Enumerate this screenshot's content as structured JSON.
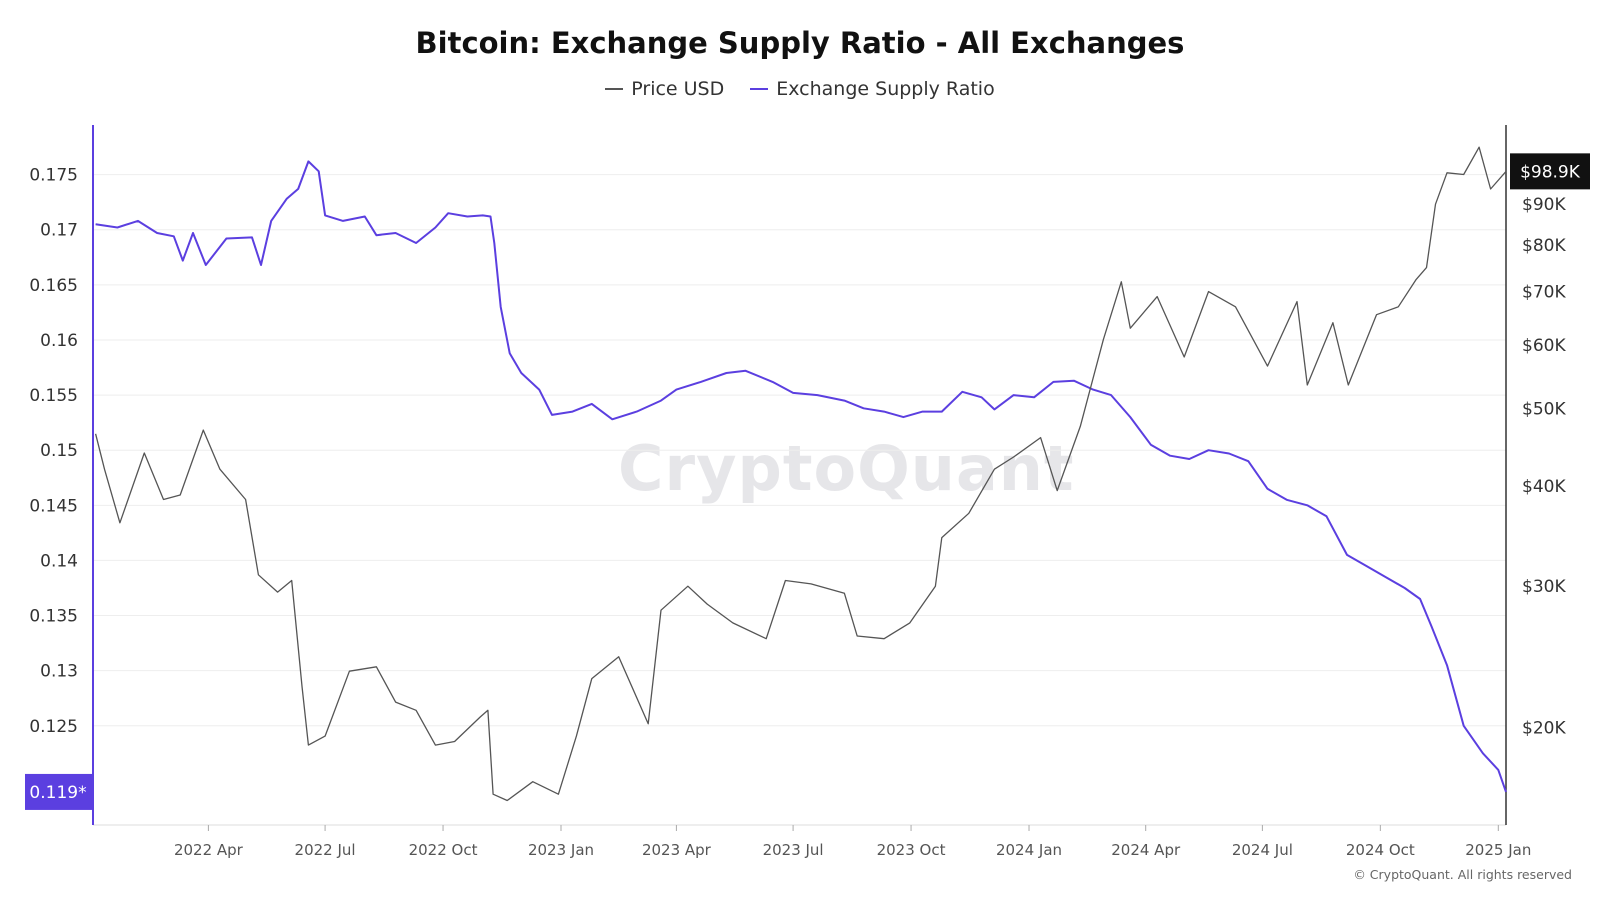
{
  "title": "Bitcoin: Exchange Supply Ratio - All Exchanges",
  "legend": [
    {
      "label": "Price USD",
      "color": "#555555"
    },
    {
      "label": "Exchange Supply Ratio",
      "color": "#5b3fe0"
    }
  ],
  "watermark": "CryptoQuant",
  "credit": "© CryptoQuant. All rights reserved",
  "chart_data": {
    "type": "line",
    "title": "Bitcoin: Exchange Supply Ratio - All Exchanges",
    "x_range": [
      "2022-01-01",
      "2025-01-07"
    ],
    "x_ticks": [
      "2022 Apr",
      "2022 Jul",
      "2022 Oct",
      "2023 Jan",
      "2023 Apr",
      "2023 Jul",
      "2023 Oct",
      "2024 Jan",
      "2024 Apr",
      "2024 Jul",
      "2024 Oct",
      "2025 Jan"
    ],
    "x_tick_dates": [
      "2022-04-01",
      "2022-07-01",
      "2022-10-01",
      "2023-01-01",
      "2023-04-01",
      "2023-07-01",
      "2023-10-01",
      "2024-01-01",
      "2024-04-01",
      "2024-07-01",
      "2024-10-01",
      "2025-01-01"
    ],
    "left_axis": {
      "ticks": [
        "0.125",
        "0.13",
        "0.135",
        "0.14",
        "0.145",
        "0.15",
        "0.155",
        "0.16",
        "0.165",
        "0.17",
        "0.175"
      ],
      "range": [
        0.116,
        0.1795
      ],
      "current_label": "0.119*",
      "current_value": 0.119
    },
    "right_axis": {
      "scale": "log",
      "ticks": [
        "$20K",
        "$30K",
        "$40K",
        "$50K",
        "$60K",
        "$70K",
        "$80K",
        "$90K"
      ],
      "tick_values": [
        20000,
        30000,
        40000,
        50000,
        60000,
        70000,
        80000,
        90000
      ],
      "range": [
        15100,
        113000
      ],
      "current_label": "$98.9K",
      "current_value": 98900
    },
    "series": [
      {
        "name": "Exchange Supply Ratio",
        "axis": "left",
        "color": "#5b3fe0",
        "points": [
          [
            "2022-01-03",
            0.1705
          ],
          [
            "2022-01-20",
            0.1702
          ],
          [
            "2022-02-05",
            0.1708
          ],
          [
            "2022-02-20",
            0.1697
          ],
          [
            "2022-03-05",
            0.1694
          ],
          [
            "2022-03-12",
            0.1672
          ],
          [
            "2022-03-20",
            0.1697
          ],
          [
            "2022-03-30",
            0.1668
          ],
          [
            "2022-04-15",
            0.1692
          ],
          [
            "2022-05-05",
            0.1693
          ],
          [
            "2022-05-12",
            0.1668
          ],
          [
            "2022-05-20",
            0.1708
          ],
          [
            "2022-06-01",
            0.1728
          ],
          [
            "2022-06-10",
            0.1737
          ],
          [
            "2022-06-18",
            0.1762
          ],
          [
            "2022-06-26",
            0.1753
          ],
          [
            "2022-07-01",
            0.1713
          ],
          [
            "2022-07-15",
            0.1708
          ],
          [
            "2022-08-01",
            0.1712
          ],
          [
            "2022-08-10",
            0.1695
          ],
          [
            "2022-08-25",
            0.1697
          ],
          [
            "2022-09-10",
            0.1688
          ],
          [
            "2022-09-25",
            0.1702
          ],
          [
            "2022-10-05",
            0.1715
          ],
          [
            "2022-10-20",
            0.1712
          ],
          [
            "2022-11-01",
            0.1713
          ],
          [
            "2022-11-07",
            0.1712
          ],
          [
            "2022-11-10",
            0.1688
          ],
          [
            "2022-11-15",
            0.163
          ],
          [
            "2022-11-22",
            0.1588
          ],
          [
            "2022-12-01",
            0.157
          ],
          [
            "2022-12-15",
            0.1555
          ],
          [
            "2022-12-25",
            0.1532
          ],
          [
            "2023-01-10",
            0.1535
          ],
          [
            "2023-01-25",
            0.1542
          ],
          [
            "2023-02-10",
            0.1528
          ],
          [
            "2023-03-01",
            0.1535
          ],
          [
            "2023-03-20",
            0.1545
          ],
          [
            "2023-04-01",
            0.1555
          ],
          [
            "2023-04-20",
            0.1562
          ],
          [
            "2023-05-10",
            0.157
          ],
          [
            "2023-05-25",
            0.1572
          ],
          [
            "2023-06-15",
            0.1562
          ],
          [
            "2023-07-01",
            0.1552
          ],
          [
            "2023-07-20",
            0.155
          ],
          [
            "2023-08-10",
            0.1545
          ],
          [
            "2023-08-25",
            0.1538
          ],
          [
            "2023-09-10",
            0.1535
          ],
          [
            "2023-09-25",
            0.153
          ],
          [
            "2023-10-10",
            0.1535
          ],
          [
            "2023-10-25",
            0.1535
          ],
          [
            "2023-11-10",
            0.1553
          ],
          [
            "2023-11-25",
            0.1548
          ],
          [
            "2023-12-05",
            0.1537
          ],
          [
            "2023-12-20",
            0.155
          ],
          [
            "2024-01-05",
            0.1548
          ],
          [
            "2024-01-20",
            0.1562
          ],
          [
            "2024-02-05",
            0.1563
          ],
          [
            "2024-02-20",
            0.1555
          ],
          [
            "2024-03-05",
            0.155
          ],
          [
            "2024-03-20",
            0.153
          ],
          [
            "2024-04-05",
            0.1505
          ],
          [
            "2024-04-20",
            0.1495
          ],
          [
            "2024-05-05",
            0.1492
          ],
          [
            "2024-05-20",
            0.15
          ],
          [
            "2024-06-05",
            0.1497
          ],
          [
            "2024-06-20",
            0.149
          ],
          [
            "2024-07-05",
            0.1465
          ],
          [
            "2024-07-20",
            0.1455
          ],
          [
            "2024-08-05",
            0.145
          ],
          [
            "2024-08-20",
            0.144
          ],
          [
            "2024-09-05",
            0.1405
          ],
          [
            "2024-09-20",
            0.1395
          ],
          [
            "2024-10-05",
            0.1385
          ],
          [
            "2024-10-20",
            0.1375
          ],
          [
            "2024-11-01",
            0.1365
          ],
          [
            "2024-11-10",
            0.134
          ],
          [
            "2024-11-22",
            0.1305
          ],
          [
            "2024-12-05",
            0.125
          ],
          [
            "2024-12-20",
            0.1225
          ],
          [
            "2025-01-01",
            0.121
          ],
          [
            "2025-01-07",
            0.119
          ]
        ]
      },
      {
        "name": "Price USD",
        "axis": "right",
        "color": "#555555",
        "points": [
          [
            "2022-01-03",
            46500
          ],
          [
            "2022-01-10",
            42000
          ],
          [
            "2022-01-22",
            36000
          ],
          [
            "2022-02-10",
            44000
          ],
          [
            "2022-02-25",
            38500
          ],
          [
            "2022-03-10",
            39000
          ],
          [
            "2022-03-28",
            47000
          ],
          [
            "2022-04-10",
            42000
          ],
          [
            "2022-04-30",
            38500
          ],
          [
            "2022-05-10",
            31000
          ],
          [
            "2022-05-25",
            29500
          ],
          [
            "2022-06-05",
            30500
          ],
          [
            "2022-06-13",
            22500
          ],
          [
            "2022-06-18",
            19000
          ],
          [
            "2022-07-01",
            19500
          ],
          [
            "2022-07-20",
            23500
          ],
          [
            "2022-08-10",
            23800
          ],
          [
            "2022-08-25",
            21500
          ],
          [
            "2022-09-10",
            21000
          ],
          [
            "2022-09-25",
            19000
          ],
          [
            "2022-10-10",
            19200
          ],
          [
            "2022-10-30",
            20600
          ],
          [
            "2022-11-05",
            21000
          ],
          [
            "2022-11-09",
            16500
          ],
          [
            "2022-11-20",
            16200
          ],
          [
            "2022-12-10",
            17100
          ],
          [
            "2022-12-30",
            16500
          ],
          [
            "2023-01-13",
            19500
          ],
          [
            "2023-01-25",
            23000
          ],
          [
            "2023-02-15",
            24500
          ],
          [
            "2023-03-10",
            20200
          ],
          [
            "2023-03-20",
            28000
          ],
          [
            "2023-04-10",
            30000
          ],
          [
            "2023-04-25",
            28500
          ],
          [
            "2023-05-15",
            27000
          ],
          [
            "2023-06-10",
            25800
          ],
          [
            "2023-06-25",
            30500
          ],
          [
            "2023-07-15",
            30200
          ],
          [
            "2023-08-10",
            29400
          ],
          [
            "2023-08-20",
            26000
          ],
          [
            "2023-09-10",
            25800
          ],
          [
            "2023-09-30",
            27000
          ],
          [
            "2023-10-20",
            30000
          ],
          [
            "2023-10-25",
            34500
          ],
          [
            "2023-11-15",
            37000
          ],
          [
            "2023-12-05",
            42000
          ],
          [
            "2023-12-20",
            43500
          ],
          [
            "2024-01-10",
            46000
          ],
          [
            "2024-01-23",
            39500
          ],
          [
            "2024-02-10",
            47500
          ],
          [
            "2024-02-28",
            61000
          ],
          [
            "2024-03-13",
            72000
          ],
          [
            "2024-03-20",
            63000
          ],
          [
            "2024-04-10",
            69000
          ],
          [
            "2024-05-01",
            58000
          ],
          [
            "2024-05-20",
            70000
          ],
          [
            "2024-06-10",
            67000
          ],
          [
            "2024-07-05",
            56500
          ],
          [
            "2024-07-28",
            68000
          ],
          [
            "2024-08-05",
            53500
          ],
          [
            "2024-08-25",
            64000
          ],
          [
            "2024-09-06",
            53500
          ],
          [
            "2024-09-28",
            65500
          ],
          [
            "2024-10-15",
            67000
          ],
          [
            "2024-10-29",
            72500
          ],
          [
            "2024-11-06",
            75000
          ],
          [
            "2024-11-13",
            90000
          ],
          [
            "2024-11-22",
            98500
          ],
          [
            "2024-12-05",
            98000
          ],
          [
            "2024-12-17",
            106000
          ],
          [
            "2024-12-26",
            94000
          ],
          [
            "2025-01-07",
            98900
          ]
        ]
      }
    ]
  }
}
